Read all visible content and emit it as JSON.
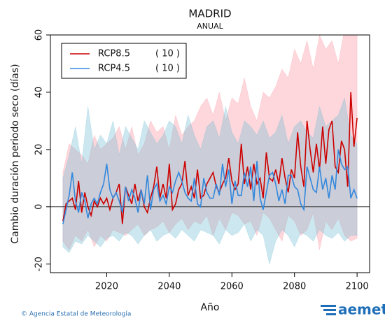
{
  "chart_data": {
    "type": "line",
    "title": "MADRID",
    "subtitle": "ANUAL",
    "x_label": "Año",
    "y_label": "Cambio duración periodo seco (días)",
    "x": [
      2006,
      2007,
      2008,
      2009,
      2010,
      2011,
      2012,
      2013,
      2014,
      2015,
      2016,
      2017,
      2018,
      2019,
      2020,
      2021,
      2022,
      2023,
      2024,
      2025,
      2026,
      2027,
      2028,
      2029,
      2030,
      2031,
      2032,
      2033,
      2034,
      2035,
      2036,
      2037,
      2038,
      2039,
      2040,
      2041,
      2042,
      2043,
      2044,
      2045,
      2046,
      2047,
      2048,
      2049,
      2050,
      2051,
      2052,
      2053,
      2054,
      2055,
      2056,
      2057,
      2058,
      2059,
      2060,
      2061,
      2062,
      2063,
      2064,
      2065,
      2066,
      2067,
      2068,
      2069,
      2070,
      2071,
      2072,
      2073,
      2074,
      2075,
      2076,
      2077,
      2078,
      2079,
      2080,
      2081,
      2082,
      2083,
      2084,
      2085,
      2086,
      2087,
      2088,
      2089,
      2090,
      2091,
      2092,
      2093,
      2094,
      2095,
      2096,
      2097,
      2098,
      2099,
      2100
    ],
    "band_x": [
      2006,
      2008,
      2010,
      2012,
      2014,
      2016,
      2018,
      2020,
      2022,
      2024,
      2026,
      2028,
      2030,
      2032,
      2034,
      2036,
      2038,
      2040,
      2042,
      2044,
      2046,
      2048,
      2050,
      2052,
      2054,
      2056,
      2058,
      2060,
      2062,
      2064,
      2066,
      2068,
      2070,
      2072,
      2074,
      2076,
      2078,
      2080,
      2082,
      2084,
      2086,
      2088,
      2090,
      2092,
      2094,
      2096,
      2098,
      2100
    ],
    "series": [
      {
        "name": "RCP8.5",
        "ensemble_label": "( 10 )",
        "color": "#cc0000",
        "band_color": "rgba(250,140,155,0.35)",
        "values": [
          -5,
          1,
          2,
          3,
          -1,
          9,
          -2,
          5,
          0,
          -3,
          2,
          0,
          3,
          1,
          3,
          -1,
          3,
          5,
          8,
          -6,
          7,
          4,
          1,
          8,
          2,
          6,
          0,
          -2,
          3,
          7,
          14,
          3,
          8,
          3,
          15,
          -1,
          1,
          6,
          8,
          16,
          4,
          7,
          3,
          13,
          3,
          4,
          8,
          10,
          12,
          7,
          5,
          8,
          10,
          17,
          9,
          6,
          8,
          22,
          8,
          14,
          6,
          15,
          8,
          10,
          3,
          19,
          10,
          9,
          13,
          8,
          17,
          10,
          5,
          13,
          10,
          26,
          14,
          7,
          30,
          20,
          12,
          22,
          13,
          28,
          15,
          27,
          30,
          14,
          12,
          23,
          20,
          7,
          40,
          21,
          31
        ],
        "band_lower": [
          -12,
          -15,
          -10,
          -12,
          -8,
          -14,
          -10,
          -12,
          -8,
          -9,
          -10,
          -8,
          -6,
          -10,
          -8,
          -7,
          -5,
          -9,
          -6,
          -4,
          -8,
          -5,
          -6,
          -3,
          -10,
          -4,
          -8,
          -2,
          -3,
          -6,
          -5,
          -10,
          -2,
          -4,
          -8,
          -12,
          -3,
          -5,
          -10,
          -8,
          -2,
          -15,
          -5,
          -8,
          -4,
          -10,
          -12,
          -11
        ],
        "band_upper": [
          12,
          22,
          20,
          18,
          15,
          25,
          20,
          22,
          24,
          28,
          20,
          28,
          18,
          22,
          30,
          26,
          28,
          20,
          32,
          25,
          28,
          30,
          35,
          38,
          32,
          40,
          30,
          38,
          36,
          45,
          35,
          30,
          40,
          38,
          42,
          48,
          45,
          55,
          50,
          58,
          48,
          60,
          55,
          58,
          50,
          62,
          60,
          62
        ]
      },
      {
        "name": "RCP4.5",
        "ensemble_label": "( 10 )",
        "color": "#3388dd",
        "band_color": "rgba(110,185,210,0.35)",
        "values": [
          -6,
          -1,
          4,
          12,
          2,
          -2,
          5,
          2,
          -4,
          1,
          3,
          1,
          5,
          8,
          15,
          6,
          3,
          5,
          2,
          -2,
          7,
          2,
          6,
          3,
          -2,
          6,
          1,
          11,
          -1,
          6,
          8,
          2,
          4,
          1,
          7,
          5,
          9,
          12,
          9,
          5,
          3,
          2,
          10,
          1,
          0,
          10,
          5,
          3,
          3,
          8,
          4,
          15,
          7,
          13,
          1,
          9,
          4,
          4,
          12,
          7,
          14,
          2,
          16,
          3,
          -1,
          5,
          11,
          12,
          8,
          2,
          6,
          1,
          11,
          11,
          7,
          6,
          1,
          -1,
          14,
          10,
          6,
          5,
          14,
          6,
          10,
          3,
          11,
          6,
          20,
          15,
          13,
          14,
          3,
          6,
          3
        ],
        "band_lower": [
          -14,
          -16,
          -12,
          -13,
          -10,
          -12,
          -14,
          -11,
          -10,
          -12,
          -9,
          -10,
          -13,
          -10,
          -8,
          -12,
          -10,
          -9,
          -11,
          -8,
          -10,
          -12,
          -8,
          -9,
          -10,
          -13,
          -8,
          -10,
          -9,
          -6,
          -12,
          -8,
          -10,
          -20,
          -12,
          -8,
          -10,
          -14,
          -9,
          -10,
          -12,
          -8,
          -10,
          -11,
          -9,
          -12,
          -10,
          -10
        ],
        "band_upper": [
          10,
          18,
          28,
          15,
          35,
          20,
          25,
          22,
          30,
          18,
          28,
          24,
          20,
          30,
          26,
          22,
          25,
          30,
          28,
          22,
          32,
          25,
          20,
          28,
          30,
          24,
          35,
          26,
          22,
          30,
          28,
          25,
          30,
          24,
          26,
          32,
          22,
          28,
          30,
          26,
          24,
          35,
          28,
          30,
          32,
          38,
          25,
          22
        ]
      }
    ],
    "xlim": [
      2002,
      2104
    ],
    "ylim": [
      -23,
      60
    ],
    "xticks": [
      2020,
      2040,
      2060,
      2080,
      2100
    ],
    "yticks": [
      -20,
      0,
      20,
      40,
      60
    ],
    "hline": 0,
    "legend": "upper left"
  },
  "footer": {
    "credit": "© Agencia Estatal de Meteorología",
    "logo": "aemet"
  }
}
